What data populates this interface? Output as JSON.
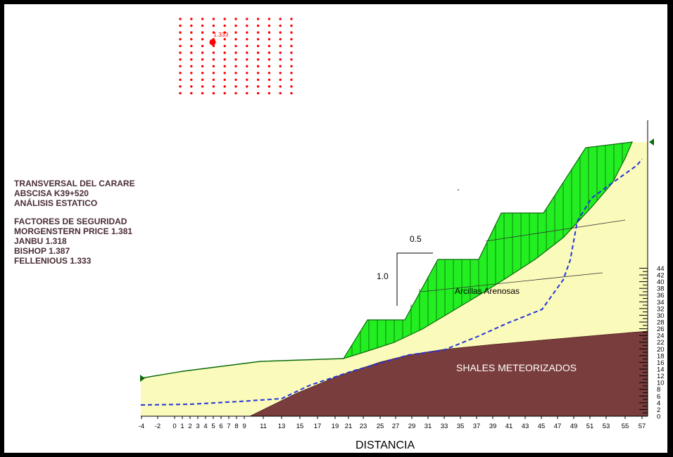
{
  "info": {
    "title": "TRANSVERSAL DEL CARARE",
    "abscisa": "ABSCISA K39+520",
    "analisis": "ANÁLISIS ESTATICO",
    "factores_title": "FACTORES DE SEGURIDAD",
    "morgenstern": "MORGENSTERN PRICE 1.381",
    "janbu": "JANBU  1.318",
    "bishop": "BISHOP  1.387",
    "fellenious": "FELLENIOUS  1.333"
  },
  "grid": {
    "critical_factor": "1.333",
    "dot_color": "#ff0000"
  },
  "slope_ratio": {
    "horizontal": "0.5",
    "vertical": "1.0"
  },
  "materials": {
    "clay": "Arcillas Arenosas",
    "shale": "SHALES METEORIZADOS"
  },
  "colors": {
    "sliding_mass": "#22ee22",
    "clay": "#fafaba",
    "shale": "#7a3d3d",
    "water_table": "#2233dd"
  },
  "axes": {
    "xlabel": "DISTANCIA",
    "x_ticks": [
      "-4",
      "-2",
      "0",
      "1",
      "2",
      "3",
      "4",
      "5",
      "6",
      "7",
      "8",
      "9",
      "11",
      "13",
      "15",
      "17",
      "19",
      "21",
      "23",
      "25",
      "27",
      "29",
      "31",
      "33",
      "35",
      "37",
      "39",
      "41",
      "43",
      "45",
      "47",
      "49",
      "51",
      "53",
      "55",
      "57"
    ],
    "y_ticks": [
      "0",
      "2",
      "4",
      "6",
      "8",
      "10",
      "12",
      "14",
      "16",
      "18",
      "20",
      "22",
      "24",
      "26",
      "28",
      "30",
      "32",
      "34",
      "36",
      "38",
      "40",
      "42",
      "44"
    ]
  }
}
